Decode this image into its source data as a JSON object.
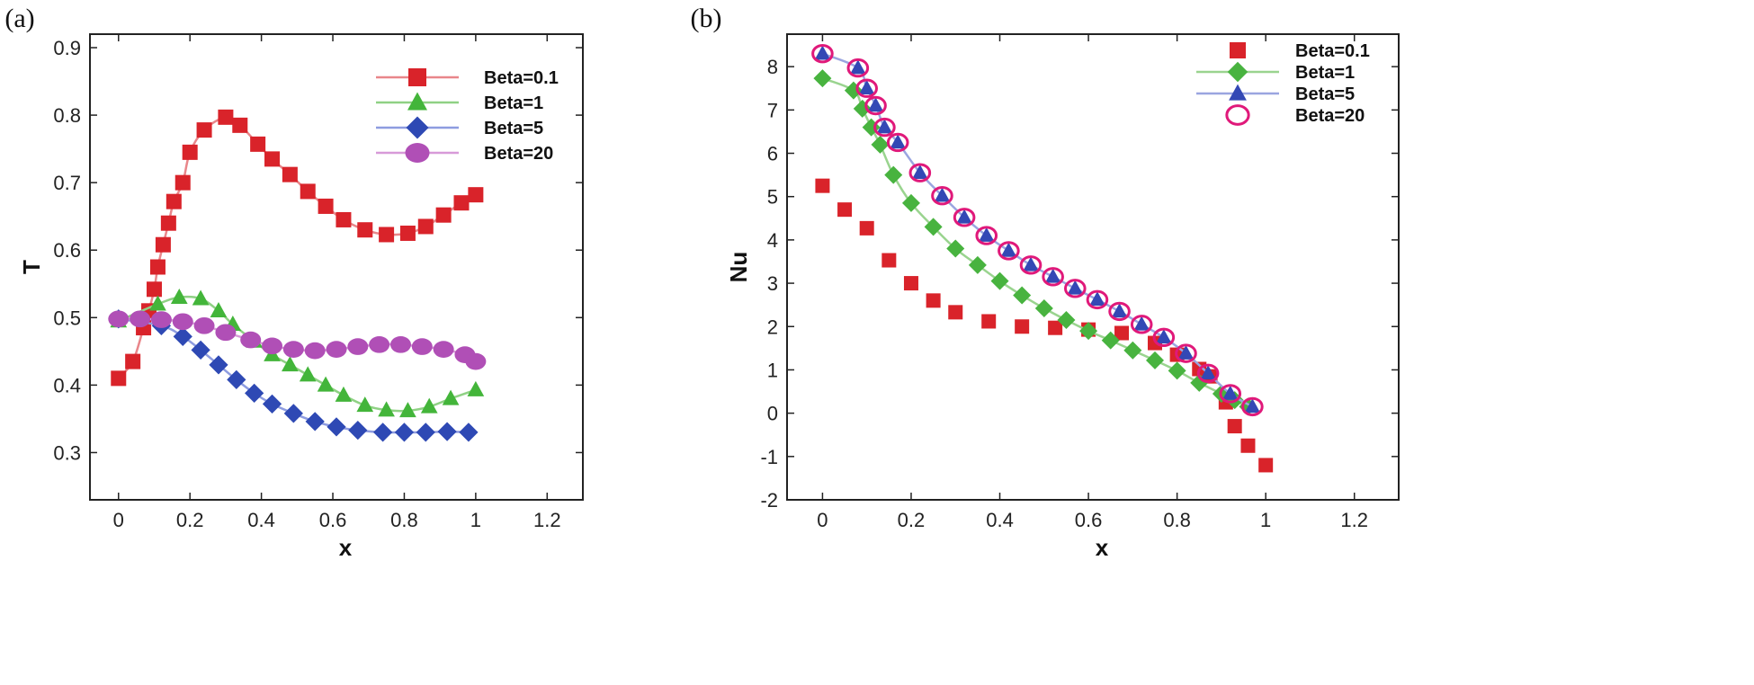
{
  "chart_data": [
    {
      "type": "line",
      "panel_label": "(a)",
      "xlabel": "x",
      "ylabel": "T",
      "xlim": [
        -0.08,
        1.3
      ],
      "ylim": [
        0.23,
        0.92
      ],
      "xticks": [
        0,
        0.2,
        0.4,
        0.6,
        0.8,
        1,
        1.2
      ],
      "xtick_labels": [
        "0",
        "0.2",
        "0.4",
        "0.6",
        "0.8",
        "1",
        "1.2"
      ],
      "yticks": [
        0.3,
        0.4,
        0.5,
        0.6,
        0.7,
        0.8,
        0.9
      ],
      "ytick_labels": [
        "0.3",
        "0.4",
        "0.5",
        "0.6",
        "0.7",
        "0.8",
        "0.9"
      ],
      "legend_position": "top-right",
      "series": [
        {
          "name": "Beta=0.1",
          "color": "#d9232a",
          "line_color": "#e9868a",
          "marker": "square",
          "x": [
            0,
            0.04,
            0.07,
            0.085,
            0.1,
            0.11,
            0.125,
            0.14,
            0.155,
            0.18,
            0.2,
            0.24,
            0.3,
            0.34,
            0.39,
            0.43,
            0.48,
            0.53,
            0.58,
            0.63,
            0.69,
            0.75,
            0.81,
            0.86,
            0.91,
            0.96,
            1.0
          ],
          "y": [
            0.41,
            0.435,
            0.485,
            0.51,
            0.542,
            0.575,
            0.608,
            0.64,
            0.672,
            0.7,
            0.745,
            0.778,
            0.797,
            0.785,
            0.757,
            0.735,
            0.712,
            0.687,
            0.665,
            0.645,
            0.63,
            0.623,
            0.625,
            0.635,
            0.652,
            0.67,
            0.682
          ]
        },
        {
          "name": "Beta=1",
          "color": "#43b53a",
          "line_color": "#8fd184",
          "marker": "triangle",
          "x": [
            0,
            0.11,
            0.17,
            0.23,
            0.28,
            0.32,
            0.38,
            0.43,
            0.48,
            0.53,
            0.58,
            0.63,
            0.69,
            0.75,
            0.81,
            0.87,
            0.93,
            1.0
          ],
          "y": [
            0.495,
            0.52,
            0.53,
            0.528,
            0.51,
            0.49,
            0.465,
            0.445,
            0.43,
            0.415,
            0.4,
            0.385,
            0.37,
            0.363,
            0.362,
            0.368,
            0.38,
            0.393
          ]
        },
        {
          "name": "Beta=5",
          "color": "#2e49b4",
          "line_color": "#8e9ce0",
          "marker": "diamond",
          "x": [
            0,
            0.12,
            0.18,
            0.23,
            0.28,
            0.33,
            0.38,
            0.43,
            0.49,
            0.55,
            0.61,
            0.67,
            0.74,
            0.8,
            0.86,
            0.92,
            0.98
          ],
          "y": [
            0.498,
            0.488,
            0.472,
            0.452,
            0.43,
            0.408,
            0.388,
            0.372,
            0.358,
            0.346,
            0.338,
            0.333,
            0.33,
            0.33,
            0.33,
            0.331,
            0.33
          ]
        },
        {
          "name": "Beta=20",
          "color": "#b04fb6",
          "line_color": "#d79ad8",
          "marker": "circle",
          "x": [
            0,
            0.06,
            0.12,
            0.18,
            0.24,
            0.3,
            0.37,
            0.43,
            0.49,
            0.55,
            0.61,
            0.67,
            0.73,
            0.79,
            0.85,
            0.91,
            0.97,
            1.0
          ],
          "y": [
            0.498,
            0.498,
            0.497,
            0.494,
            0.488,
            0.478,
            0.467,
            0.458,
            0.453,
            0.451,
            0.453,
            0.457,
            0.46,
            0.46,
            0.457,
            0.453,
            0.445,
            0.435
          ]
        }
      ]
    },
    {
      "type": "scatter",
      "panel_label": "(b)",
      "xlabel": "x",
      "ylabel": "Nu",
      "xlim": [
        -0.08,
        1.3
      ],
      "ylim": [
        -2,
        8.75
      ],
      "xticks": [
        0,
        0.2,
        0.4,
        0.6,
        0.8,
        1,
        1.2
      ],
      "xtick_labels": [
        "0",
        "0.2",
        "0.4",
        "0.6",
        "0.8",
        "1",
        "1.2"
      ],
      "yticks": [
        -2,
        -1,
        0,
        1,
        2,
        3,
        4,
        5,
        6,
        7,
        8
      ],
      "ytick_labels": [
        "-2",
        "-1",
        "0",
        "1",
        "2",
        "3",
        "4",
        "5",
        "6",
        "7",
        "8"
      ],
      "legend_position": "top-right",
      "series": [
        {
          "name": "Beta=0.1",
          "color": "#d9232a",
          "line_color": "",
          "marker": "square",
          "x": [
            0,
            0.05,
            0.1,
            0.15,
            0.2,
            0.25,
            0.3,
            0.375,
            0.45,
            0.525,
            0.6,
            0.675,
            0.75,
            0.8,
            0.85,
            0.875,
            0.91,
            0.93,
            0.96,
            1.0
          ],
          "y": [
            5.25,
            4.7,
            4.27,
            3.53,
            3.0,
            2.6,
            2.33,
            2.12,
            2.0,
            1.97,
            1.93,
            1.85,
            1.62,
            1.35,
            1.02,
            0.85,
            0.25,
            -0.3,
            -0.75,
            -1.2
          ]
        },
        {
          "name": "Beta=1",
          "color": "#48b33f",
          "line_color": "#9ad48f",
          "marker": "diamond",
          "x": [
            0,
            0.07,
            0.09,
            0.11,
            0.13,
            0.16,
            0.2,
            0.25,
            0.3,
            0.35,
            0.4,
            0.45,
            0.5,
            0.55,
            0.6,
            0.65,
            0.7,
            0.75,
            0.8,
            0.85,
            0.9,
            0.93,
            0.96
          ],
          "y": [
            7.73,
            7.45,
            7.03,
            6.6,
            6.2,
            5.5,
            4.85,
            4.3,
            3.8,
            3.42,
            3.05,
            2.72,
            2.42,
            2.15,
            1.9,
            1.68,
            1.45,
            1.22,
            0.98,
            0.7,
            0.45,
            0.3,
            0.15
          ]
        },
        {
          "name": "Beta=5",
          "color": "#3348b5",
          "line_color": "#9aa5e0",
          "marker": "triangle",
          "x": [
            0,
            0.08,
            0.1,
            0.12,
            0.14,
            0.17,
            0.22,
            0.27,
            0.32,
            0.37,
            0.42,
            0.47,
            0.52,
            0.57,
            0.62,
            0.67,
            0.72,
            0.77,
            0.82,
            0.87,
            0.92,
            0.97
          ],
          "y": [
            8.3,
            7.97,
            7.5,
            7.1,
            6.6,
            6.25,
            5.55,
            5.02,
            4.52,
            4.1,
            3.75,
            3.42,
            3.15,
            2.88,
            2.62,
            2.35,
            2.05,
            1.75,
            1.38,
            0.92,
            0.45,
            0.15
          ]
        },
        {
          "name": "Beta=20",
          "color": "#e0197a",
          "line_color": "",
          "marker": "open-circle",
          "x": [
            0,
            0.08,
            0.1,
            0.12,
            0.14,
            0.17,
            0.22,
            0.27,
            0.32,
            0.37,
            0.42,
            0.47,
            0.52,
            0.57,
            0.62,
            0.67,
            0.72,
            0.77,
            0.82,
            0.87,
            0.92,
            0.97
          ],
          "y": [
            8.3,
            7.97,
            7.5,
            7.1,
            6.6,
            6.25,
            5.55,
            5.02,
            4.52,
            4.1,
            3.75,
            3.42,
            3.15,
            2.88,
            2.62,
            2.35,
            2.05,
            1.75,
            1.38,
            0.92,
            0.45,
            0.15
          ]
        }
      ]
    }
  ]
}
